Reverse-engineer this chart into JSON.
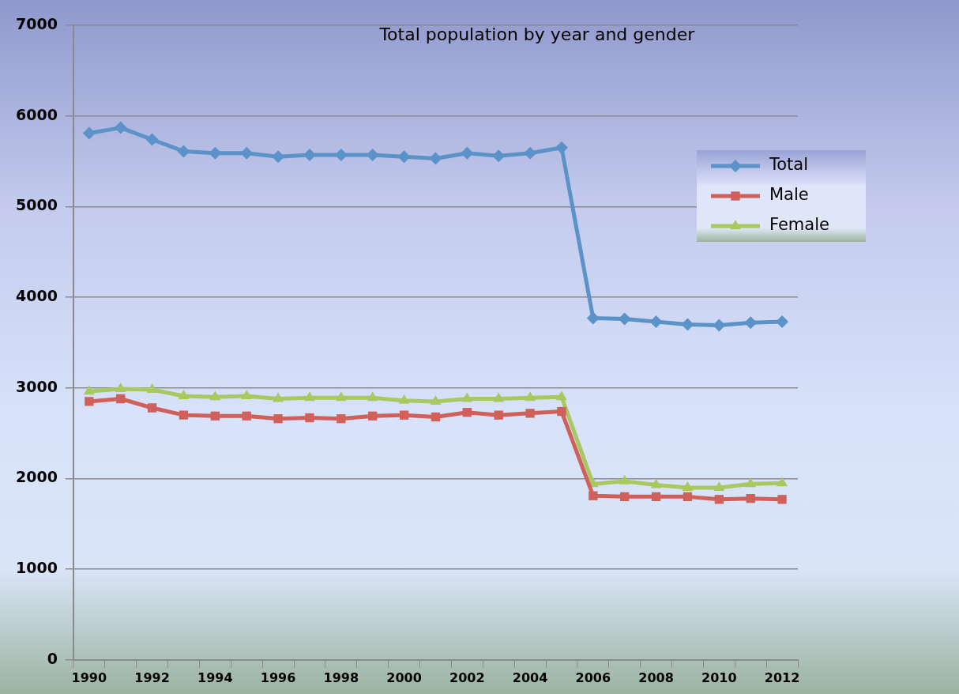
{
  "chart_data": {
    "type": "line",
    "title": "Total population by year and gender",
    "categories": [
      "1990",
      null,
      "1992",
      null,
      "1994",
      null,
      "1996",
      null,
      "1998",
      null,
      "2000",
      null,
      "2002",
      null,
      "2004",
      null,
      "2006",
      null,
      "2008",
      null,
      "2010",
      null,
      "2012"
    ],
    "series": [
      {
        "name": "Total",
        "color": "#5b93c8",
        "marker": "diamond",
        "values": [
          5810,
          5870,
          5740,
          5610,
          5590,
          5590,
          5550,
          5570,
          5570,
          5570,
          5550,
          5530,
          5590,
          5560,
          5590,
          5650,
          3770,
          3760,
          3730,
          3700,
          3690,
          3720,
          3730
        ]
      },
      {
        "name": "Male",
        "color": "#d0605a",
        "marker": "square",
        "values": [
          2850,
          2880,
          2780,
          2700,
          2690,
          2690,
          2660,
          2670,
          2660,
          2690,
          2700,
          2680,
          2730,
          2700,
          2720,
          2740,
          1810,
          1800,
          1800,
          1800,
          1770,
          1780,
          1770
        ]
      },
      {
        "name": "Female",
        "color": "#a8c860",
        "marker": "triangle",
        "values": [
          2960,
          2990,
          2980,
          2910,
          2900,
          2910,
          2880,
          2890,
          2890,
          2890,
          2860,
          2850,
          2880,
          2880,
          2890,
          2900,
          1940,
          1970,
          1930,
          1900,
          1900,
          1940,
          1950
        ]
      }
    ],
    "ylim": [
      0,
      7000
    ],
    "yticks": [
      0,
      1000,
      2000,
      3000,
      4000,
      5000,
      6000,
      7000
    ],
    "grid": "y",
    "legend": "right",
    "line_style": "solid"
  }
}
